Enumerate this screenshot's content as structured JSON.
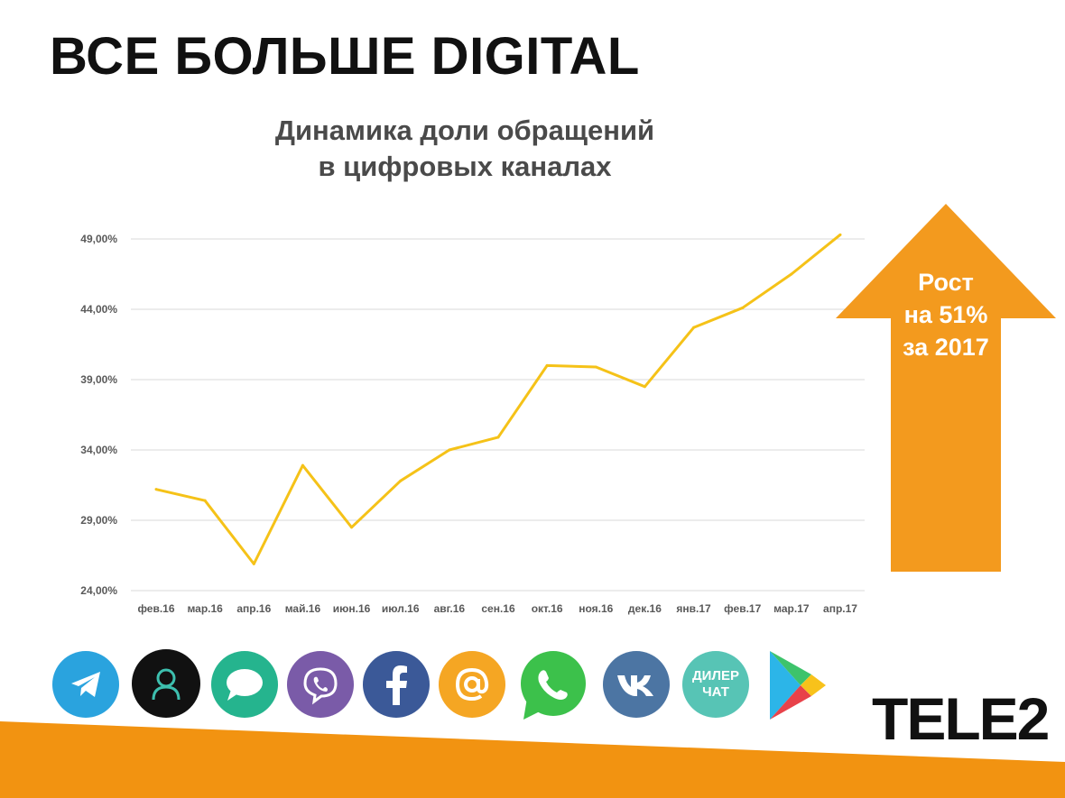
{
  "headline": "ВСЕ БОЛЬШЕ DIGITAL",
  "chart_title_lines": [
    "Динамика доли обращений",
    "в цифровых каналах"
  ],
  "chart_data": {
    "type": "line",
    "title": "Динамика доли обращений в цифровых каналах",
    "categories": [
      "фев.16",
      "мар.16",
      "апр.16",
      "май.16",
      "июн.16",
      "июл.16",
      "авг.16",
      "сен.16",
      "окт.16",
      "ноя.16",
      "дек.16",
      "янв.17",
      "фев.17",
      "мар.17",
      "апр.17"
    ],
    "series": [
      {
        "values": [
          31.2,
          30.4,
          25.9,
          32.9,
          28.5,
          31.8,
          34.0,
          34.9,
          40.0,
          39.9,
          38.5,
          42.7,
          44.1,
          46.5,
          49.3
        ]
      }
    ],
    "yticks": [
      "24,00%",
      "29,00%",
      "34,00%",
      "39,00%",
      "44,00%",
      "49,00%"
    ],
    "ylim": [
      24,
      49
    ],
    "grid": true,
    "line_color": "#F5C218"
  },
  "arrow": {
    "lines": [
      "Рост",
      "на 51%",
      "за 2017"
    ],
    "color": "#F39A1E"
  },
  "channel_icons": [
    {
      "name": "telegram-icon",
      "color": "#2AA3DE"
    },
    {
      "name": "user-avatar-icon",
      "color": "#111111"
    },
    {
      "name": "chat-bubble-icon",
      "color": "#25B48E"
    },
    {
      "name": "viber-icon",
      "color": "#7A5BA8"
    },
    {
      "name": "facebook-icon",
      "color": "#3B5998"
    },
    {
      "name": "email-at-icon",
      "color": "#F5A623"
    },
    {
      "name": "whatsapp-icon",
      "color": "#3CC14B"
    },
    {
      "name": "vk-icon",
      "color": "#4C75A3"
    },
    {
      "name": "dealer-chat-icon",
      "color": "#57C4B5",
      "label_lines": [
        "ДИЛЕР",
        "ЧАТ"
      ]
    },
    {
      "name": "google-play-icon",
      "color": "#ffffff"
    }
  ],
  "logo": "TELE2",
  "accent_orange": "#F39A1E"
}
